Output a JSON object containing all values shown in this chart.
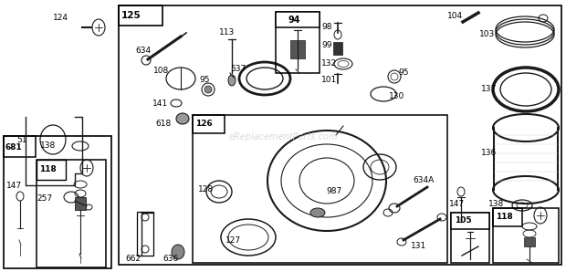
{
  "bg_color": "#ffffff",
  "fig_width": 6.2,
  "fig_height": 2.98,
  "watermark": "eReplacementParts.com"
}
